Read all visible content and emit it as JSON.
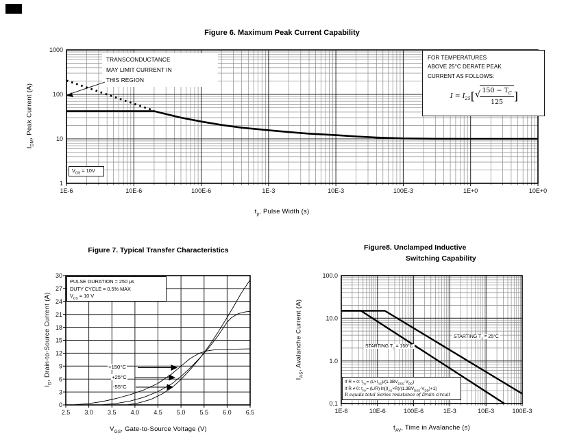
{
  "chart_data": [
    {
      "id": "fig6",
      "type": "line",
      "title": "Figure 6. Maximum Peak Current Capability",
      "xlabel": "tp, Pulse Width (s)",
      "ylabel": "IDM, Peak Current (A)",
      "xlabel_rich": [
        {
          "t": "t"
        },
        {
          "t": "p",
          "s": 1
        },
        {
          "t": ", Pulse Width (s)"
        }
      ],
      "ylabel_rich": [
        {
          "t": "I"
        },
        {
          "t": "DM",
          "s": 1
        },
        {
          "t": ", Peak Current (A)"
        }
      ],
      "xscale": "log",
      "yscale": "log",
      "xlim": [
        1e-06,
        10
      ],
      "ylim": [
        1,
        1000
      ],
      "grid": "on",
      "xticks": {
        "values": [
          1e-06,
          1e-05,
          0.0001,
          0.001,
          0.01,
          0.1,
          1,
          10
        ],
        "labels": [
          "1E-6",
          "10E-6",
          "100E-6",
          "1E-3",
          "10E-3",
          "100E-3",
          "1E+0",
          "10E+0"
        ]
      },
      "yticks": {
        "values": [
          1,
          10,
          100,
          1000
        ],
        "labels": [
          "1",
          "10",
          "100",
          "1000"
        ]
      },
      "series": [
        {
          "name": "maximum-peak-current",
          "style": "solid",
          "width": 2.6,
          "points": [
            [
              1e-06,
              42
            ],
            [
              2e-05,
              42
            ],
            [
              3e-05,
              36
            ],
            [
              5e-05,
              30
            ],
            [
              0.0001,
              24.5
            ],
            [
              0.0002,
              20.5
            ],
            [
              0.0004,
              17.8
            ],
            [
              0.001,
              15.6
            ],
            [
              0.002,
              14.2
            ],
            [
              0.004,
              13.1
            ],
            [
              0.01,
              12.1
            ],
            [
              0.02,
              11.3
            ],
            [
              0.04,
              10.7
            ],
            [
              0.1,
              10.2
            ],
            [
              0.3,
              10.05
            ],
            [
              1,
              10
            ],
            [
              10,
              10
            ]
          ]
        },
        {
          "name": "transconductance-limit",
          "style": "dotted",
          "width": 2.8,
          "points": [
            [
              1e-06,
              205
            ],
            [
              2e-05,
              43
            ]
          ]
        }
      ],
      "annotations": {
        "note": {
          "lines": [
            "TRANSCONDUCTANCE",
            "MAY LIMIT CURRENT IN",
            "THIS REGION"
          ],
          "arrow_to_xy": [
            1.05e-06,
            90
          ]
        },
        "derate": {
          "lines": [
            "FOR TEMPERATURES",
            "ABOVE 25°C DERATE PEAK",
            "CURRENT AS FOLLOWS:"
          ],
          "formula": {
            "lhs": "I",
            "eq": " = ",
            "base": "I",
            "base_sub": "25",
            "lbracket": "[",
            "radical": "√",
            "num_pre": "150 − T",
            "num_sub": "C",
            "den": "125",
            "rbracket": "]"
          }
        },
        "vgs": [
          {
            "t": "V"
          },
          {
            "t": "GS",
            "s": 1
          },
          {
            "t": " = 10V"
          }
        ]
      }
    },
    {
      "id": "fig7",
      "type": "line",
      "title": "Figure 7. Typical Transfer Characteristics",
      "xlabel": "VGS, Gate-to-Source Voltage (V)",
      "ylabel": "ID, Drain-to-Source Current (A)",
      "xlabel_rich": [
        {
          "t": "V"
        },
        {
          "t": "GS",
          "s": 1
        },
        {
          "t": ", Gate-to-Source Voltage (V)"
        }
      ],
      "ylabel_rich": [
        {
          "t": "I"
        },
        {
          "t": "D",
          "s": 1
        },
        {
          "t": ", Drain-to-Source Current (A)"
        }
      ],
      "xscale": "linear",
      "yscale": "linear",
      "xlim": [
        2.5,
        6.5
      ],
      "ylim": [
        0,
        30
      ],
      "grid": "on",
      "xticks": {
        "values": [
          2.5,
          3,
          3.5,
          4,
          4.5,
          5,
          5.5,
          6,
          6.5
        ],
        "labels": [
          "2.5",
          "3.0",
          "3.5",
          "4.0",
          "4.5",
          "5.0",
          "5.5",
          "6.0",
          "6.5"
        ]
      },
      "yticks": {
        "values": [
          0,
          3,
          6,
          9,
          12,
          15,
          18,
          21,
          24,
          27,
          30
        ],
        "labels": [
          "0",
          "3",
          "6",
          "9",
          "12",
          "15",
          "18",
          "21",
          "24",
          "27",
          "30"
        ]
      },
      "series": [
        {
          "name": "+150°C",
          "style": "solid",
          "width": 0.9,
          "points": [
            [
              2.7,
              0.05
            ],
            [
              3.0,
              0.3
            ],
            [
              3.3,
              0.8
            ],
            [
              3.6,
              1.5
            ],
            [
              3.9,
              2.4
            ],
            [
              4.2,
              3.5
            ],
            [
              4.5,
              5.0
            ],
            [
              4.8,
              7.2
            ],
            [
              5.0,
              9.0
            ],
            [
              5.2,
              10.8
            ],
            [
              5.4,
              12.0
            ],
            [
              5.55,
              12.5
            ],
            [
              5.7,
              12.75
            ],
            [
              6.0,
              12.9
            ],
            [
              6.5,
              13.0
            ]
          ]
        },
        {
          "name": "+25°C",
          "style": "solid",
          "width": 0.9,
          "points": [
            [
              3.3,
              0.05
            ],
            [
              3.6,
              0.35
            ],
            [
              3.9,
              0.9
            ],
            [
              4.2,
              1.8
            ],
            [
              4.5,
              3.1
            ],
            [
              4.8,
              4.9
            ],
            [
              5.0,
              6.6
            ],
            [
              5.2,
              8.6
            ],
            [
              5.4,
              10.8
            ],
            [
              5.6,
              13.2
            ],
            [
              5.8,
              16.0
            ],
            [
              6.0,
              19.2
            ],
            [
              6.1,
              20.3
            ],
            [
              6.25,
              21.2
            ],
            [
              6.4,
              21.6
            ],
            [
              6.5,
              21.7
            ]
          ]
        },
        {
          "name": "-55°C",
          "style": "solid",
          "width": 0.9,
          "points": [
            [
              3.85,
              0.05
            ],
            [
              4.1,
              0.5
            ],
            [
              4.35,
              1.3
            ],
            [
              4.6,
              2.6
            ],
            [
              4.8,
              4.0
            ],
            [
              5.0,
              5.9
            ],
            [
              5.2,
              8.2
            ],
            [
              5.4,
              10.7
            ],
            [
              5.6,
              13.6
            ],
            [
              5.8,
              16.8
            ],
            [
              6.0,
              20.3
            ],
            [
              6.15,
              23.0
            ],
            [
              6.3,
              25.8
            ],
            [
              6.45,
              28.2
            ],
            [
              6.5,
              29.0
            ]
          ]
        }
      ],
      "annotations": {
        "conditions": [
          [
            {
              "t": "PULSE DURATION = 250 μs"
            }
          ],
          [
            {
              "t": "DUTY CYCLE = 0.5% MAX"
            }
          ],
          [
            {
              "t": "V"
            },
            {
              "t": "DS",
              "s": 1
            },
            {
              "t": " = 10 V"
            }
          ]
        ],
        "curve_labels": [
          {
            "text": "+150°C"
          },
          {
            "text": "+25°C"
          },
          {
            "text": "-55°C"
          }
        ]
      }
    },
    {
      "id": "fig8",
      "type": "line",
      "title": "Figure8. Unclamped Inductive Switching Capability",
      "title_lines": [
        "Figure8.  Unclamped Inductive",
        "Switching Capability"
      ],
      "xlabel": "tAV, Time in Avalanche (s)",
      "ylabel": "IAS, Avalanche Current (A)",
      "xlabel_rich": [
        {
          "t": "t"
        },
        {
          "t": "AV",
          "s": 1
        },
        {
          "t": ", Time in Avalanche (s)"
        }
      ],
      "ylabel_rich": [
        {
          "t": "I"
        },
        {
          "t": "AS",
          "s": 1
        },
        {
          "t": ", Avalanche Current (A)"
        }
      ],
      "xscale": "log",
      "yscale": "log",
      "xlim": [
        1e-06,
        0.1
      ],
      "ylim": [
        0.1,
        100
      ],
      "grid": "on",
      "xticks": {
        "values": [
          1e-06,
          1e-05,
          0.0001,
          0.001,
          0.01,
          0.1
        ],
        "labels": [
          "1E-6",
          "10E-6",
          "100E-6",
          "1E-3",
          "10E-3",
          "100E-3"
        ]
      },
      "yticks": {
        "values": [
          0.1,
          1,
          10,
          100
        ],
        "labels": [
          "0.1",
          "1.0",
          "10.0",
          "100.0"
        ]
      },
      "series": [
        {
          "name": "starting-tj-25C",
          "style": "solid",
          "width": 2.4,
          "points": [
            [
              1e-06,
              15
            ],
            [
              1.6e-05,
              15
            ],
            [
              0.1,
              0.17
            ]
          ]
        },
        {
          "name": "starting-tj-150C",
          "style": "solid",
          "width": 2.4,
          "points": [
            [
              1e-06,
              15
            ],
            [
              3.5e-06,
              15
            ],
            [
              0.032,
              0.1
            ]
          ]
        }
      ],
      "annotations": {
        "starting_150": [
          {
            "t": "STARTING T"
          },
          {
            "t": "J",
            "s": 1
          },
          {
            "t": " = 150°C"
          }
        ],
        "starting_25": [
          {
            "t": "STARTING T"
          },
          {
            "t": "J",
            "s": 1
          },
          {
            "t": " = 25°C"
          }
        ],
        "formula_lines": [
          [
            {
              "t": "If R = 0: t"
            },
            {
              "t": "AV",
              "s": 1
            },
            {
              "t": "= (L×I"
            },
            {
              "t": "AS",
              "s": 1
            },
            {
              "t": ")/(1.3BV"
            },
            {
              "t": "DSS",
              "s": 1
            },
            {
              "t": "-V"
            },
            {
              "t": "DD",
              "s": 1
            },
            {
              "t": ")"
            }
          ],
          [
            {
              "t": "If R ≠ 0: t"
            },
            {
              "t": "AV",
              "s": 1
            },
            {
              "t": "= (L/R) ln[(I"
            },
            {
              "t": "AS",
              "s": 1
            },
            {
              "t": "×R)/(1.3BV"
            },
            {
              "t": "DSS",
              "s": 1
            },
            {
              "t": "-V"
            },
            {
              "t": "DD",
              "s": 1
            },
            {
              "t": ")+1]"
            }
          ],
          [
            {
              "t": "R equals total Series resistance of Drain circuit",
              "i": 1
            }
          ]
        ]
      }
    }
  ]
}
